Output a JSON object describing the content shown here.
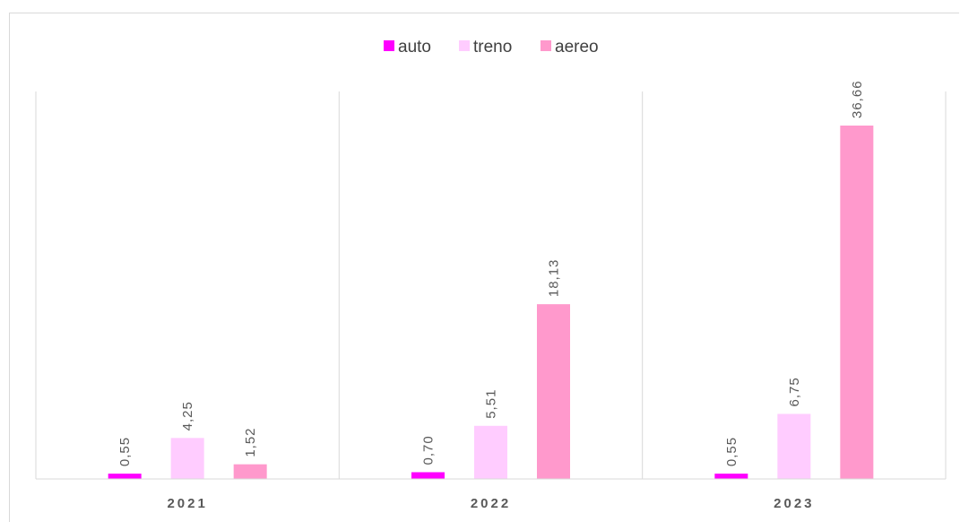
{
  "chart_data": {
    "type": "bar",
    "categories": [
      "2021",
      "2022",
      "2023"
    ],
    "series": [
      {
        "name": "auto",
        "values": [
          0.55,
          0.7,
          0.55
        ],
        "labels": [
          "0,55",
          "0,70",
          "0,55"
        ],
        "color": "#ff00ff"
      },
      {
        "name": "treno",
        "values": [
          4.25,
          5.51,
          6.75
        ],
        "labels": [
          "4,25",
          "5,51",
          "6,75"
        ],
        "color": "#ffccff"
      },
      {
        "name": "aereo",
        "values": [
          1.52,
          18.13,
          36.66
        ],
        "labels": [
          "1,52",
          "18,13",
          "36,66"
        ],
        "color": "#ff99cc"
      }
    ],
    "title": "",
    "xlabel": "",
    "ylabel": "",
    "ylim": [
      0,
      40
    ],
    "grid": "vertical category separators",
    "legend_position": "top-center",
    "data_labels": true
  },
  "colors": {
    "axis": "#d9d9d9",
    "text": "#595959",
    "background": "#ffffff"
  }
}
